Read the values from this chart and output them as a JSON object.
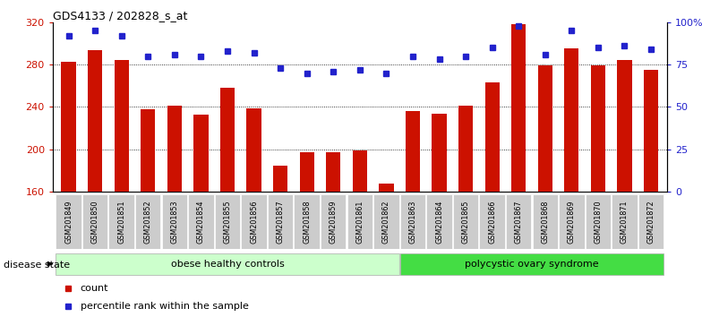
{
  "title": "GDS4133 / 202828_s_at",
  "samples": [
    "GSM201849",
    "GSM201850",
    "GSM201851",
    "GSM201852",
    "GSM201853",
    "GSM201854",
    "GSM201855",
    "GSM201856",
    "GSM201857",
    "GSM201858",
    "GSM201859",
    "GSM201861",
    "GSM201862",
    "GSM201863",
    "GSM201864",
    "GSM201865",
    "GSM201866",
    "GSM201867",
    "GSM201868",
    "GSM201869",
    "GSM201870",
    "GSM201871",
    "GSM201872"
  ],
  "bar_values": [
    283,
    294,
    284,
    238,
    241,
    233,
    258,
    239,
    185,
    197,
    197,
    199,
    168,
    236,
    234,
    241,
    263,
    318,
    279,
    295,
    279,
    284,
    275
  ],
  "percentile_values": [
    92,
    95,
    92,
    80,
    81,
    80,
    83,
    82,
    73,
    70,
    71,
    72,
    70,
    80,
    78,
    80,
    85,
    98,
    81,
    95,
    85,
    86,
    84
  ],
  "bar_color": "#cc1100",
  "percentile_color": "#2222cc",
  "ylim_left": [
    160,
    320
  ],
  "ylim_right": [
    0,
    100
  ],
  "yticks_left": [
    160,
    200,
    240,
    280,
    320
  ],
  "yticks_right": [
    0,
    25,
    50,
    75,
    100
  ],
  "ytick_labels_right": [
    "0",
    "25",
    "50",
    "75",
    "100%"
  ],
  "grid_values": [
    200,
    240,
    280
  ],
  "n_obese": 13,
  "n_total": 23,
  "group0_label": "obese healthy controls",
  "group0_color": "#ccffcc",
  "group1_label": "polycystic ovary syndrome",
  "group1_color": "#44dd44",
  "disease_state_label": "disease state",
  "legend_count_label": "count",
  "legend_pct_label": "percentile rank within the sample",
  "bar_width": 0.55,
  "background_color": "#ffffff",
  "tick_label_bg": "#cccccc"
}
